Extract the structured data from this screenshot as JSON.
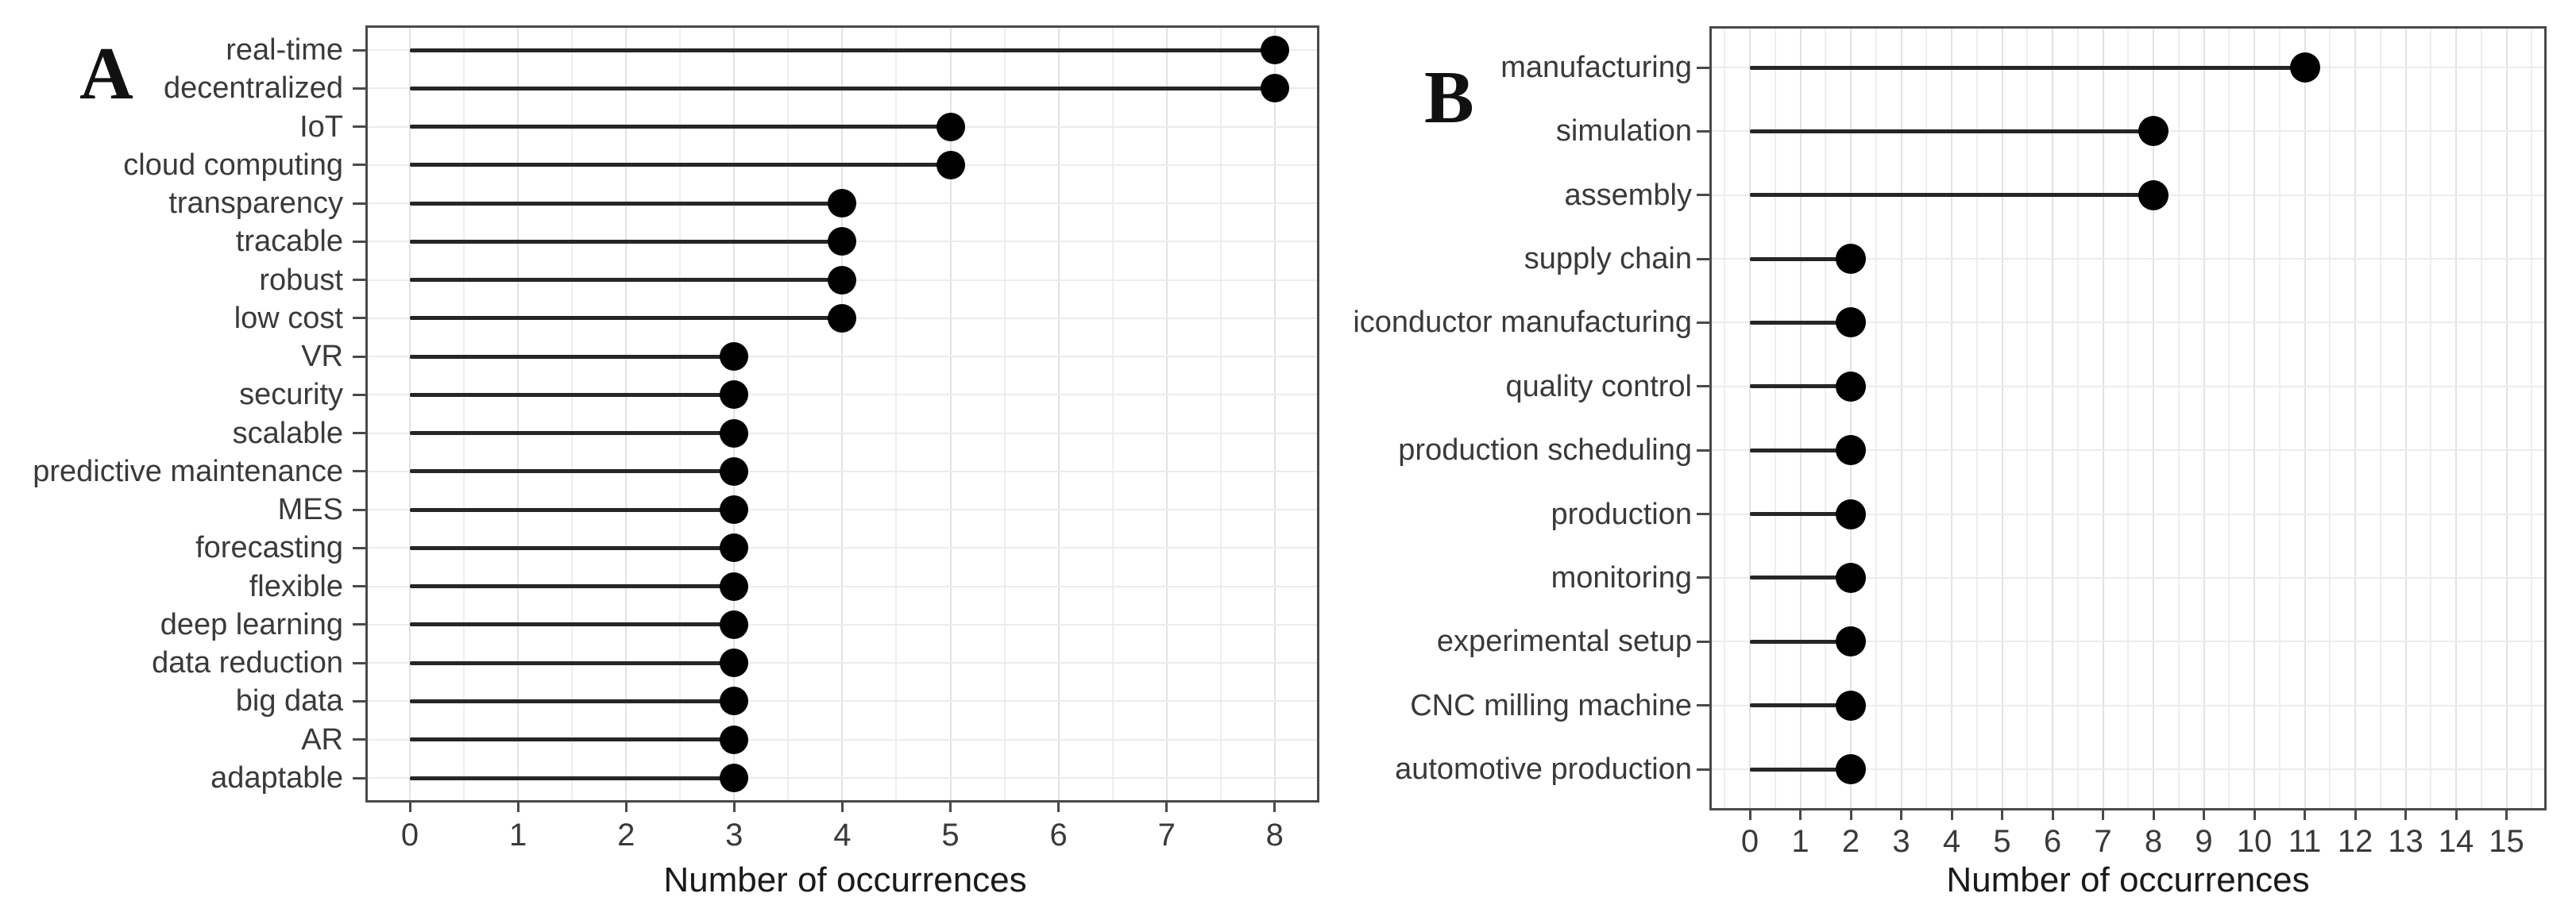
{
  "figure": {
    "description": "Two-panel horizontal lollipop chart of keyword occurrences",
    "background": "#ffffff"
  },
  "chart_data": [
    {
      "type": "bar",
      "variant": "lollipop-horizontal",
      "panel_label": "A",
      "xlabel": "Number of occurrences",
      "categories": [
        "real-time",
        "decentralized",
        "IoT",
        "cloud computing",
        "transparency",
        "tracable",
        "robust",
        "low cost",
        "VR",
        "security",
        "scalable",
        "predictive maintenance",
        "MES",
        "forecasting",
        "flexible",
        "deep learning",
        "data reduction",
        "big data",
        "AR",
        "adaptable"
      ],
      "values": [
        8,
        8,
        5,
        5,
        4,
        4,
        4,
        4,
        3,
        3,
        3,
        3,
        3,
        3,
        3,
        3,
        3,
        3,
        3,
        3
      ],
      "xticks": [
        0,
        1,
        2,
        3,
        4,
        5,
        6,
        7,
        8
      ],
      "xlim": [
        0,
        8
      ],
      "grid": true,
      "legend": "none"
    },
    {
      "type": "bar",
      "variant": "lollipop-horizontal",
      "panel_label": "B",
      "xlabel": "Number of occurrences",
      "categories": [
        "manufacturing",
        "simulation",
        "assembly",
        "supply chain",
        "iconductor manufacturing",
        "quality control",
        "production scheduling",
        "production",
        "monitoring",
        "experimental setup",
        "CNC milling machine",
        "automotive production"
      ],
      "values": [
        11,
        8,
        8,
        2,
        2,
        2,
        2,
        2,
        2,
        2,
        2,
        2
      ],
      "xticks": [
        0,
        1,
        2,
        3,
        4,
        5,
        6,
        7,
        8,
        9,
        10,
        11,
        12,
        13,
        14,
        15
      ],
      "xlim": [
        0,
        15
      ],
      "grid": true,
      "legend": "none"
    }
  ],
  "style": {
    "dot_color": "#000000",
    "stem_color": "#262626",
    "panel_border_color": "#4a4a4a",
    "grid_major_color": "#e2e2e2",
    "grid_minor_color": "#eeeeee",
    "grid_row_color": "#ececec",
    "axis_text_color": "#3a3a3a",
    "axis_title_color": "#1a1a1a",
    "panel_tag_color": "#111111",
    "background": "#ffffff"
  }
}
